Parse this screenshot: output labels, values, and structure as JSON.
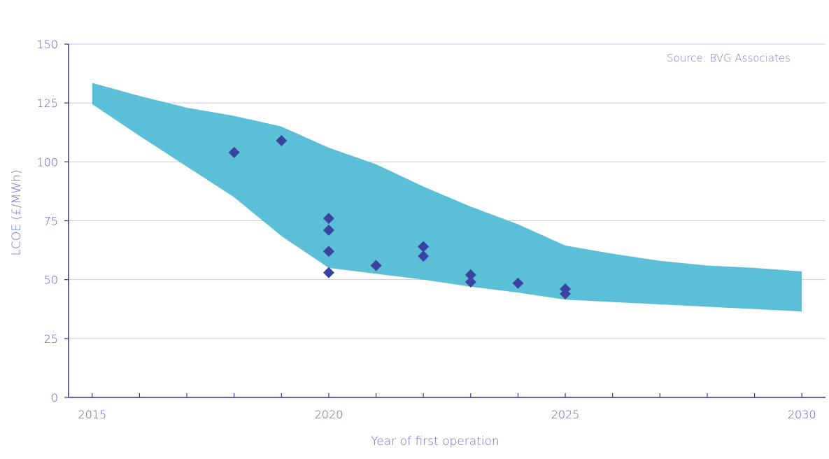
{
  "chart_data": {
    "type": "scatter",
    "title": "",
    "xlabel": "Year of first operation",
    "ylabel": "LCOE (£/MWh)",
    "source_note": "Source: BVG Associates",
    "xlim": [
      2014.5,
      2030.5
    ],
    "ylim": [
      0,
      150
    ],
    "x_ticks": [
      2015,
      2020,
      2025,
      2030
    ],
    "y_ticks": [
      0,
      25,
      50,
      75,
      100,
      125,
      150
    ],
    "grid": "horizontal",
    "band": {
      "x": [
        2015,
        2016,
        2017,
        2018,
        2019,
        2020,
        2021,
        2022,
        2023,
        2024,
        2025,
        2026,
        2027,
        2028,
        2029,
        2030
      ],
      "upper": [
        133.5,
        128,
        123,
        119.5,
        115,
        106,
        99,
        89.5,
        81,
        73.5,
        64.5,
        61,
        58,
        56,
        55,
        53.5
      ],
      "lower": [
        124.5,
        111,
        98,
        85,
        68.5,
        55,
        52.5,
        50,
        47,
        44.5,
        41.5,
        40.5,
        39.5,
        38.5,
        37.5,
        36.5
      ]
    },
    "series": [
      {
        "x": [
          2018,
          2019,
          2020,
          2020,
          2020,
          2020,
          2021,
          2022,
          2022,
          2023,
          2023,
          2024,
          2025,
          2025
        ],
        "y": [
          104,
          109,
          76,
          71,
          62,
          53,
          56,
          64,
          60,
          52,
          49,
          48.5,
          46,
          44
        ]
      }
    ],
    "colors": {
      "band": "#5bbfd7",
      "markers": "#3a44a0",
      "axis": "#2f3590",
      "grid": "#c9cbe8",
      "tick_text": "#5b5fae"
    }
  }
}
